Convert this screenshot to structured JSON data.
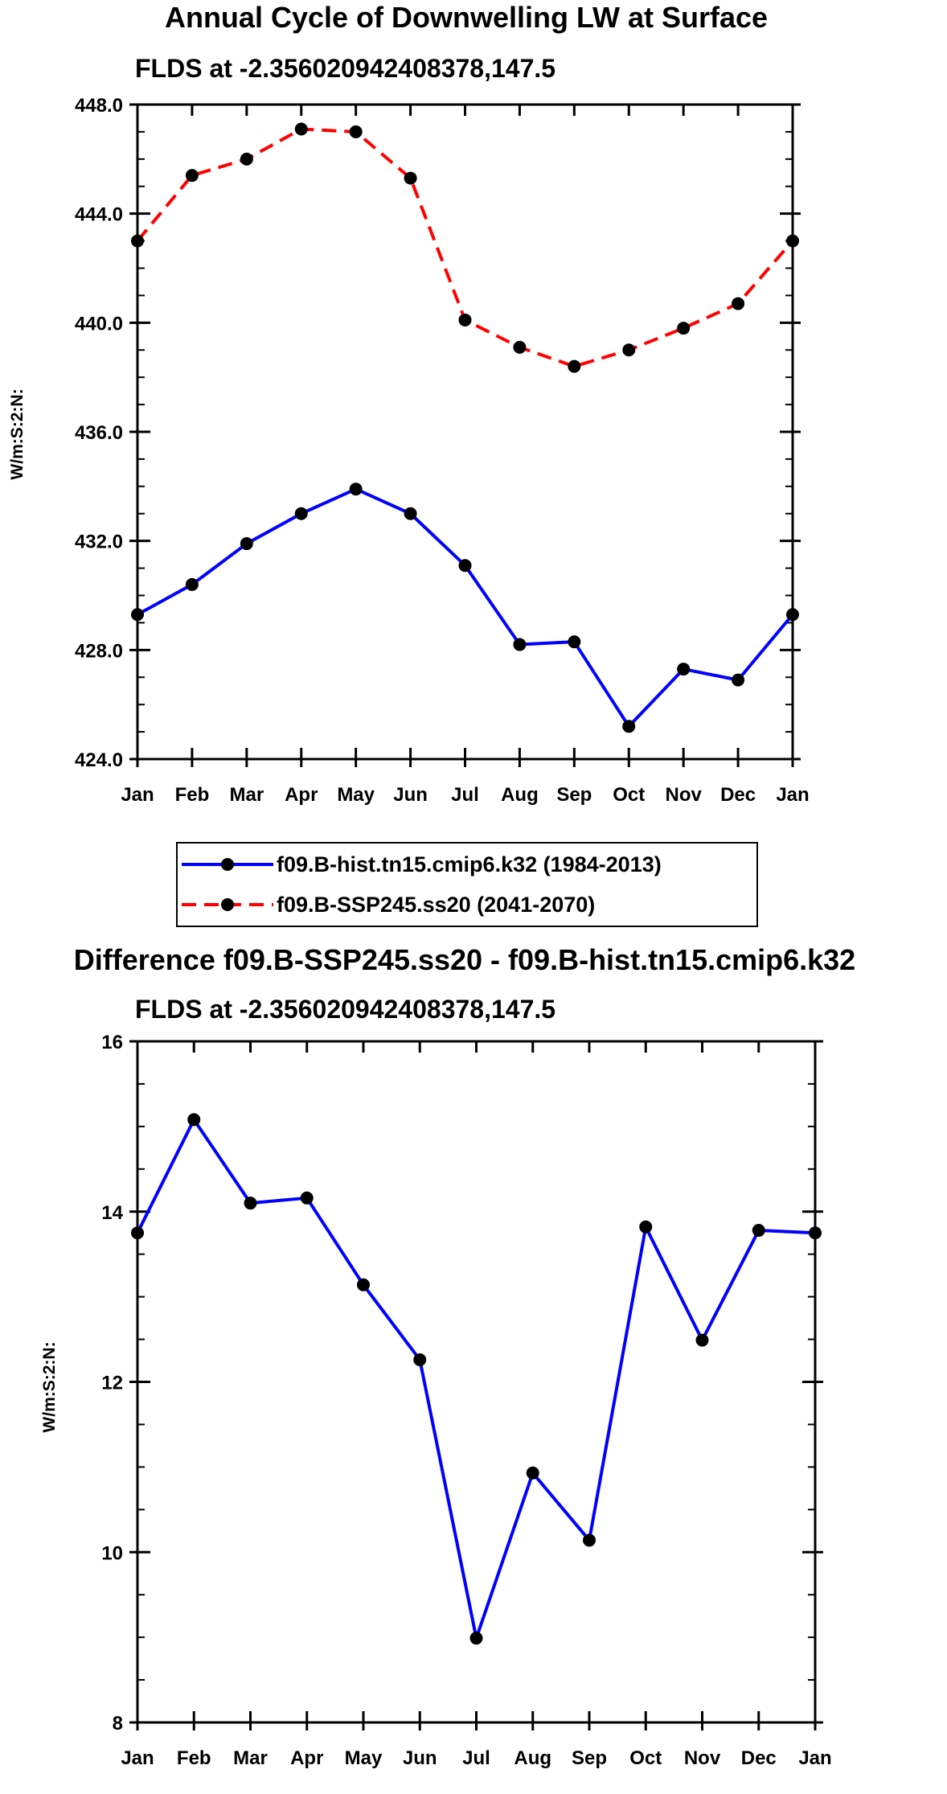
{
  "chart_data": [
    {
      "type": "line",
      "title": "Annual Cycle of Downwelling LW at Surface",
      "subtitle": "FLDS at -2.356020942408378,147.5",
      "ylabel": "W/m:S:2:N:",
      "xlabel": "",
      "ylim": [
        424,
        448
      ],
      "y_ticks": [
        "424.0",
        "428.0",
        "432.0",
        "436.0",
        "440.0",
        "444.0",
        "448.0"
      ],
      "categories": [
        "Jan",
        "Feb",
        "Mar",
        "Apr",
        "May",
        "Jun",
        "Jul",
        "Aug",
        "Sep",
        "Oct",
        "Nov",
        "Dec",
        "Jan"
      ],
      "series": [
        {
          "name": "f09.B-hist.tn15.cmip6.k32 (1984-2013)",
          "color": "#0000ff",
          "dash": "solid",
          "values": [
            429.3,
            430.4,
            431.9,
            433.0,
            433.9,
            433.0,
            431.1,
            428.2,
            428.3,
            425.2,
            427.3,
            426.9,
            429.3
          ]
        },
        {
          "name": "f09.B-SSP245.ss20 (2041-2070)",
          "color": "#ff0000",
          "dash": "dashed",
          "values": [
            443.0,
            445.4,
            446.0,
            447.1,
            447.0,
            445.3,
            440.1,
            439.1,
            438.4,
            439.0,
            439.8,
            440.7,
            443.0
          ]
        }
      ],
      "legend": "bottom"
    },
    {
      "type": "line",
      "title": "Difference f09.B-SSP245.ss20 - f09.B-hist.tn15.cmip6.k32",
      "subtitle": "FLDS at -2.356020942408378,147.5",
      "ylabel": "W/m:S:2:N:",
      "xlabel": "",
      "ylim": [
        8,
        16
      ],
      "y_ticks": [
        "8",
        "10",
        "12",
        "14",
        "16"
      ],
      "categories": [
        "Jan",
        "Feb",
        "Mar",
        "Apr",
        "May",
        "Jun",
        "Jul",
        "Aug",
        "Sep",
        "Oct",
        "Nov",
        "Dec",
        "Jan"
      ],
      "series": [
        {
          "color": "#0000ff",
          "dash": "solid",
          "values": [
            13.75,
            15.08,
            14.1,
            14.16,
            13.14,
            12.26,
            8.99,
            10.93,
            10.14,
            13.82,
            12.49,
            13.78,
            13.75
          ]
        }
      ]
    }
  ]
}
